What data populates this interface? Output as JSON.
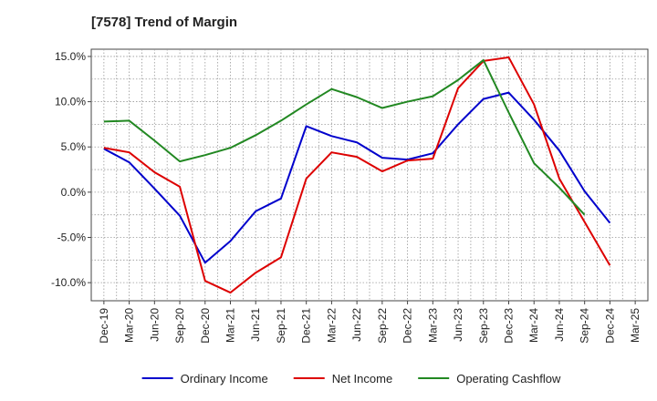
{
  "chart_data": {
    "type": "line",
    "title": "[7578]  Trend of Margin",
    "xlabel": "",
    "ylabel": "",
    "ylim": [
      -12,
      15.8
    ],
    "y_ticks": [
      "15.0%",
      "10.0%",
      "5.0%",
      "0.0%",
      "-5.0%",
      "-10.0%"
    ],
    "y_tick_values": [
      15,
      10,
      5,
      0,
      -5,
      -10
    ],
    "categories": [
      "Dec-19",
      "Mar-20",
      "Jun-20",
      "Sep-20",
      "Dec-20",
      "Mar-21",
      "Jun-21",
      "Sep-21",
      "Dec-21",
      "Mar-22",
      "Jun-22",
      "Sep-22",
      "Dec-22",
      "Mar-23",
      "Jun-23",
      "Sep-23",
      "Dec-23",
      "Mar-24",
      "Jun-24",
      "Sep-24",
      "Dec-24",
      "Mar-25"
    ],
    "grid": true,
    "legend_position": "bottom",
    "series": [
      {
        "name": "Ordinary Income",
        "color": "#0000cc",
        "values": [
          4.8,
          3.3,
          0.4,
          -2.6,
          -7.8,
          -5.4,
          -2.1,
          -0.7,
          7.3,
          6.2,
          5.5,
          3.8,
          3.6,
          4.3,
          7.5,
          10.3,
          11.0,
          8.0,
          4.6,
          0.1,
          -3.4,
          null
        ]
      },
      {
        "name": "Net Income",
        "color": "#dd0000",
        "values": [
          4.9,
          4.4,
          2.2,
          0.6,
          -9.8,
          -11.1,
          -8.9,
          -7.2,
          1.5,
          4.4,
          3.9,
          2.3,
          3.5,
          3.7,
          11.5,
          14.5,
          14.9,
          9.7,
          1.5,
          -3.3,
          -8.1,
          null
        ]
      },
      {
        "name": "Operating Cashflow",
        "color": "#228822",
        "values": [
          7.8,
          7.9,
          5.7,
          3.4,
          4.1,
          4.9,
          6.3,
          7.9,
          9.7,
          11.4,
          10.5,
          9.3,
          10.0,
          10.6,
          12.4,
          14.6,
          8.8,
          3.2,
          0.5,
          -2.5,
          null,
          null
        ]
      }
    ]
  }
}
